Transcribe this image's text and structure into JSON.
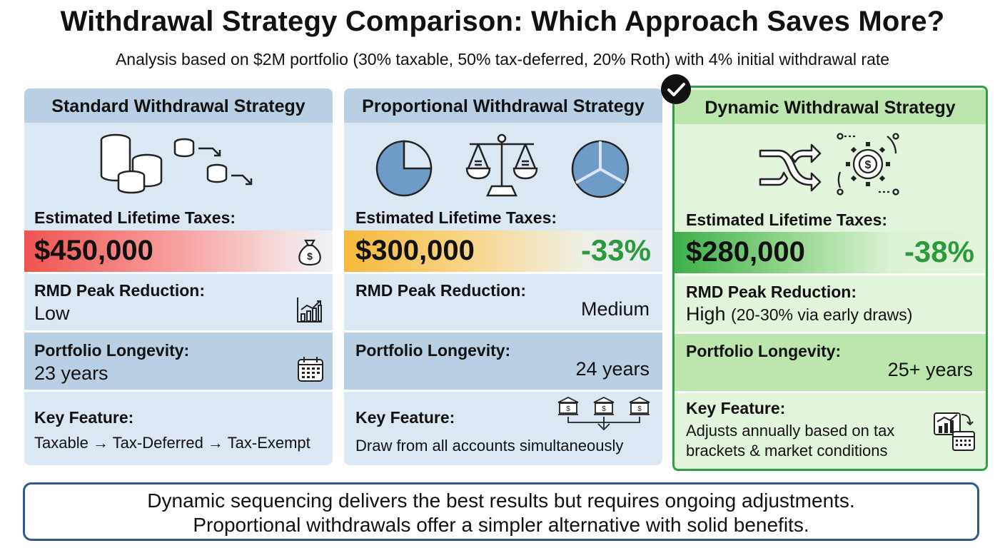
{
  "title": "Withdrawal Strategy Comparison: Which Approach Saves More?",
  "subtitle": "Analysis based on $2M portfolio (30% taxable, 50% tax-deferred, 20% Roth) with 4% initial withdrawal rate",
  "cards": [
    {
      "heading": "Standard Withdrawal Strategy",
      "taxes_label": "Estimated Lifetime Taxes:",
      "taxes_value": "$450,000",
      "reduction_pct": "",
      "rmd_label": "RMD Peak Reduction:",
      "rmd_value": "Low",
      "longevity_label": "Portfolio Longevity:",
      "longevity_value": "23 years",
      "feature_label": "Key Feature:",
      "feature_value": "Taxable → Tax-Deferred → Tax-Exempt",
      "band_color": "#ef5350",
      "icons": [
        "coin-stack-icon",
        "cascading-coins-icon",
        "money-bag-icon",
        "bar-chart-icon",
        "calendar-icon"
      ]
    },
    {
      "heading": "Proportional Withdrawal Strategy",
      "taxes_label": "Estimated Lifetime Taxes:",
      "taxes_value": "$300,000",
      "reduction_pct": "-33%",
      "rmd_label": "RMD Peak Reduction:",
      "rmd_value": "Medium",
      "longevity_label": "Portfolio Longevity:",
      "longevity_value": "24 years",
      "feature_label": "Key Feature:",
      "feature_value": "Draw from all accounts simultaneously",
      "band_color": "#f6b93b",
      "icons": [
        "pie-chart-icon",
        "balance-scale-icon",
        "segmented-pie-icon",
        "three-banks-icon"
      ]
    },
    {
      "heading": "Dynamic Withdrawal Strategy",
      "taxes_label": "Estimated Lifetime Taxes:",
      "taxes_value": "$280,000",
      "reduction_pct": "-38%",
      "rmd_label": "RMD Peak Reduction:",
      "rmd_value": "High",
      "rmd_note": "(20-30% via early draws)",
      "longevity_label": "Portfolio Longevity:",
      "longevity_value": "25+ years",
      "feature_label": "Key Feature:",
      "feature_value_line1": "Adjusts annually based on tax",
      "feature_value_line2": "brackets & market conditions",
      "band_color": "#3cb04a",
      "highlight_color": "#2f9e44",
      "icons": [
        "shuffle-arrows-icon",
        "dollar-gear-cycle-icon",
        "chart-calendar-icon",
        "check-badge-icon"
      ]
    }
  ],
  "footer": {
    "line1": "Dynamic sequencing delivers the best results but requires ongoing adjustments.",
    "line2": "Proportional withdrawals offer a simpler alternative with solid benefits."
  }
}
